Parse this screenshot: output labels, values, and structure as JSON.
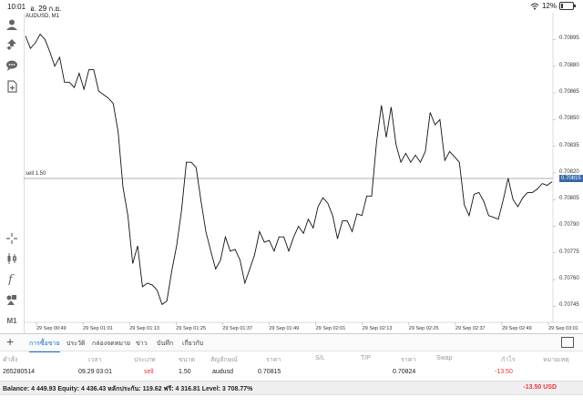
{
  "status_bar": {
    "time": "10:01",
    "date": "อ. 29 ก.ย.",
    "battery": "12%"
  },
  "chart": {
    "symbol_label": "AUDUSD, M1",
    "sell_label": "sell 1.50",
    "current_price": "0.70815",
    "price_labels": [
      "0.70895",
      "0.70880",
      "0.70865",
      "0.70850",
      "0.70835",
      "0.70820",
      "0.70805",
      "0.70790",
      "0.70775",
      "0.70760",
      "0.70745"
    ],
    "time_labels": [
      "29 Sep 00:49",
      "29 Sep 01:01",
      "29 Sep 01:13",
      "29 Sep 01:25",
      "29 Sep 01:37",
      "29 Sep 01:49",
      "29 Sep 02:01",
      "29 Sep 02:13",
      "29 Sep 02:25",
      "29 Sep 02:37",
      "29 Sep 02:49",
      "29 Sep 03:01"
    ]
  },
  "chart_data": {
    "type": "line",
    "title": "AUDUSD, M1",
    "xlabel": "",
    "ylabel": "",
    "ylim": [
      0.70737,
      0.70908
    ],
    "x_range": [
      "29 Sep 00:49",
      "29 Sep 03:01"
    ],
    "grid": false,
    "hline": {
      "label": "sell 1.50",
      "y": 0.70815
    },
    "series": [
      {
        "values": [
          0.70897,
          0.7089,
          0.70893,
          0.70898,
          0.70895,
          0.70888,
          0.7088,
          0.70885,
          0.70871,
          0.70871,
          0.70868,
          0.70876,
          0.70867,
          0.70878,
          0.70878,
          0.70866,
          0.70864,
          0.70862,
          0.70859,
          0.70843,
          0.70812,
          0.70796,
          0.70769,
          0.70779,
          0.70756,
          0.70758,
          0.70757,
          0.70754,
          0.70746,
          0.70748,
          0.70765,
          0.70779,
          0.70799,
          0.70826,
          0.70826,
          0.70823,
          0.70804,
          0.70787,
          0.70776,
          0.70766,
          0.70771,
          0.70784,
          0.70776,
          0.70777,
          0.70771,
          0.70758,
          0.70766,
          0.70774,
          0.70787,
          0.70781,
          0.70782,
          0.70776,
          0.70784,
          0.70784,
          0.70776,
          0.70784,
          0.7079,
          0.70786,
          0.70794,
          0.70789,
          0.70801,
          0.70806,
          0.70803,
          0.70796,
          0.70783,
          0.70793,
          0.70793,
          0.70787,
          0.70797,
          0.70796,
          0.70807,
          0.70807,
          0.70837,
          0.70858,
          0.7084,
          0.70857,
          0.70836,
          0.70826,
          0.70831,
          0.70826,
          0.7083,
          0.70826,
          0.70832,
          0.70854,
          0.70847,
          0.7085,
          0.70827,
          0.70832,
          0.70829,
          0.70826,
          0.70802,
          0.70796,
          0.70808,
          0.70809,
          0.70804,
          0.70796,
          0.70795,
          0.70794,
          0.70805,
          0.70817,
          0.70805,
          0.70801,
          0.70806,
          0.70809,
          0.70809,
          0.70811,
          0.70814,
          0.70813,
          0.70815
        ]
      }
    ]
  },
  "tabs": [
    "การซื้อขาย",
    "ประวัติ",
    "กล่องจดหมาย",
    "ข่าว",
    "บันทึก",
    "เกี่ยวกับ"
  ],
  "table": {
    "headers": [
      "คำสั่ง",
      "เวลา",
      "ประเภท",
      "ขนาด",
      "สัญลักษณ์",
      "ราคา",
      "S/L",
      "T/P",
      "ราคา",
      "Swap",
      "กำไร",
      "หมายเหตุ"
    ],
    "row": {
      "order": "265280514",
      "time": "09.29 03:01",
      "type": "sell",
      "size": "1.50",
      "symbol": "audusd",
      "price": "0.70815",
      "price2": "0.70824",
      "profit": "-13.50"
    }
  },
  "balance": {
    "text": "Balance: 4 449.93 Equity: 4 436.43 หลักประกัน: 119.62 ฟรี: 4 316.81 Level: 3 708.77%",
    "profit": "-13.50  USD"
  },
  "colors": {
    "accent": "#1c6fd0",
    "loss": "#e33333",
    "price_tag": "#3a68a8"
  }
}
